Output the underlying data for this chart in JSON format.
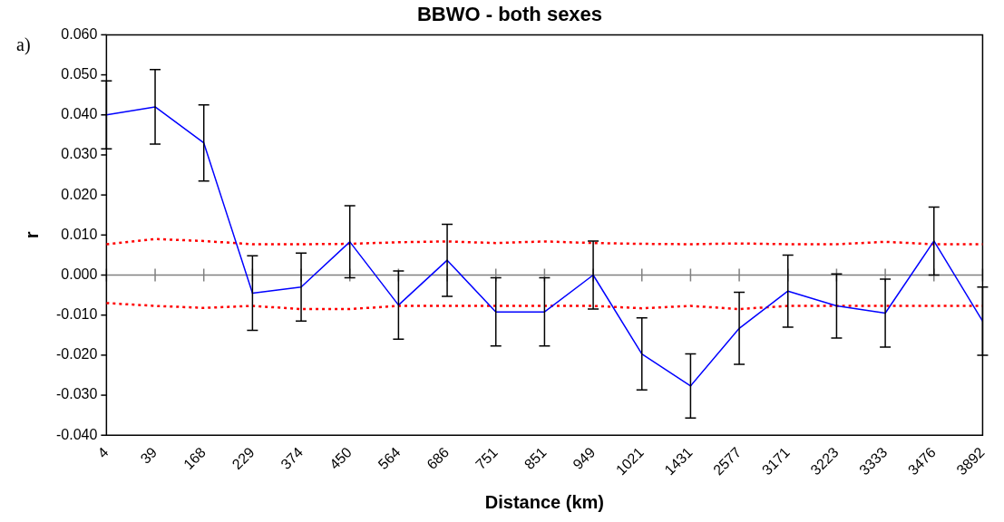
{
  "chart_data": {
    "type": "line",
    "title": "BBWO - both sexes",
    "xlabel": "Distance (km)",
    "ylabel": "r",
    "categories": [
      "4",
      "39",
      "168",
      "229",
      "374",
      "450",
      "564",
      "686",
      "751",
      "851",
      "949",
      "1021",
      "1431",
      "2577",
      "3171",
      "3223",
      "3333",
      "3476",
      "3892"
    ],
    "series": [
      {
        "color": "#0000ff",
        "values": [
          0.04,
          0.042,
          0.033,
          -0.0045,
          -0.003,
          0.0083,
          -0.0075,
          0.0037,
          -0.0092,
          -0.0092,
          0.0,
          -0.0197,
          -0.0277,
          -0.0133,
          -0.004,
          -0.0077,
          -0.0095,
          0.0085,
          -0.0115
        ],
        "errors": [
          0.0085,
          0.0093,
          0.0095,
          0.0093,
          0.0085,
          0.009,
          0.0085,
          0.009,
          0.0085,
          0.0085,
          0.0085,
          0.009,
          0.008,
          0.009,
          0.009,
          0.008,
          0.0085,
          0.0085,
          0.0085
        ],
        "line_style": "solid"
      },
      {
        "color": "#ff0000",
        "values": [
          0.0077,
          0.009,
          0.0085,
          0.0077,
          0.0077,
          0.0078,
          0.0082,
          0.0084,
          0.008,
          0.0084,
          0.008,
          0.0078,
          0.0077,
          0.0079,
          0.0077,
          0.0077,
          0.0083,
          0.0077,
          0.0077
        ],
        "line_style": "dotted"
      },
      {
        "color": "#ff0000",
        "values": [
          -0.007,
          -0.0077,
          -0.0082,
          -0.0077,
          -0.0085,
          -0.0085,
          -0.0077,
          -0.0077,
          -0.0077,
          -0.0077,
          -0.0077,
          -0.0083,
          -0.0077,
          -0.0085,
          -0.0077,
          -0.0077,
          -0.0077,
          -0.0077,
          -0.0077
        ],
        "line_style": "dotted"
      }
    ],
    "ylim": [
      -0.04,
      0.06
    ],
    "yticks": [
      {
        "value": -0.04,
        "label": "-0.040"
      },
      {
        "value": -0.03,
        "label": "-0.030"
      },
      {
        "value": -0.02,
        "label": "-0.020"
      },
      {
        "value": -0.01,
        "label": "-0.010"
      },
      {
        "value": 0,
        "label": "0.000"
      },
      {
        "value": 0.01,
        "label": "0.010"
      },
      {
        "value": 0.02,
        "label": "0.020"
      },
      {
        "value": 0.03,
        "label": "0.030"
      },
      {
        "value": 0.04,
        "label": "0.040"
      },
      {
        "value": 0.05,
        "label": "0.050"
      },
      {
        "value": 0.06,
        "label": "0.060"
      }
    ],
    "ref_lines": [
      {
        "axis": "y",
        "value": 0,
        "color": "#808080"
      }
    ],
    "annotations": [
      "a)"
    ],
    "grid": false,
    "legend": false,
    "marker": "none"
  }
}
